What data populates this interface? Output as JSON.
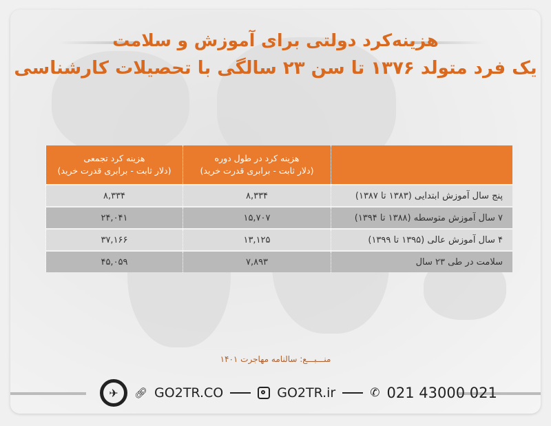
{
  "title": {
    "line1": "هزینه‌کرد دولتی برای آموزش و سلامت",
    "line2": "یک فرد متولد ۱۳۷۶ تا سن ۲۳ سالگی با تحصیلات کارشناسی"
  },
  "table": {
    "headers": [
      "",
      "هزینه کرد در طول دوره\n(دلار ثابت - برابری قدرت خرید)",
      "هزینه کرد تجمعی\n(دلار ثابت - برابری قدرت خرید)"
    ],
    "header_lines": [
      {
        "a": "",
        "b": ""
      },
      {
        "a": "هزینه کرد در طول دوره",
        "b": "(دلار ثابت - برابری قدرت خرید)"
      },
      {
        "a": "هزینه کرد تجمعی",
        "b": "(دلار ثابت - برابری قدرت خرید)"
      }
    ],
    "rows": [
      {
        "label": "پنج سال آموزش ابتدایی (۱۳۸۳ تا ۱۳۸۷)",
        "period": "۸,۳۳۴",
        "cumulative": "۸,۳۳۴"
      },
      {
        "label": "۷ سال آموزش متوسطه (۱۳۸۸ تا ۱۳۹۴)",
        "period": "۱۵,۷۰۷",
        "cumulative": "۲۴,۰۴۱"
      },
      {
        "label": "۴ سال آموزش عالی (۱۳۹۵ تا ۱۳۹۹)",
        "period": "۱۳,۱۲۵",
        "cumulative": "۳۷,۱۶۶"
      },
      {
        "label": "سلامت در طی ۲۳ سال",
        "period": "۷,۸۹۳",
        "cumulative": "۴۵,۰۵۹"
      }
    ]
  },
  "source": "منـــبـــع: سالنامه مهاجرت ۱۴۰۱",
  "footer": {
    "website": "GO2TR.CO",
    "instagram": "GO2TR.ir",
    "phone": "021 43000 021",
    "icons": [
      "logo-plane-icon",
      "link-icon",
      "instagram-icon",
      "phone-icon"
    ]
  },
  "colors": {
    "accent": "#ea7a2c",
    "title": "#d8691f",
    "row_light": "#dcdcdc",
    "row_dark": "#b9b9b9"
  }
}
